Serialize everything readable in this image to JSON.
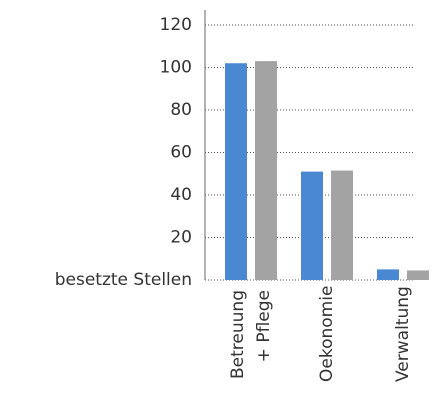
{
  "chart_data": {
    "type": "bar",
    "categories": [
      "Betreuung + Pflege",
      "Oekonomie",
      "Verwaltung"
    ],
    "series": [
      {
        "color": "#4a88d2",
        "values": [
          102,
          51,
          5
        ]
      },
      {
        "color": "#a3a3a3",
        "values": [
          103,
          51.5,
          4.5
        ]
      }
    ],
    "ylim": [
      0,
      120
    ],
    "yticks": [
      {
        "value": 0,
        "label": "besetzte Stellen"
      },
      20,
      40,
      60,
      80,
      100,
      120
    ],
    "grid": true
  }
}
